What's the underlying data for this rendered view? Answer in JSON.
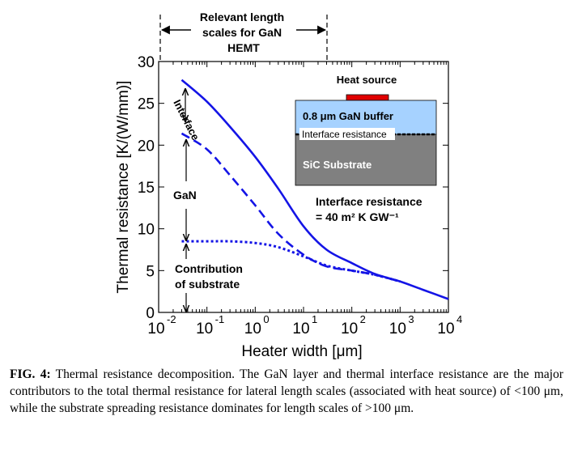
{
  "chart_data": {
    "type": "line",
    "xscale": "log",
    "xlim": [
      0.01,
      10000
    ],
    "ylim": [
      0,
      30
    ],
    "xlabel": "Heater width [μm]",
    "ylabel": "Thermal resistance [K/(W/mm)]",
    "x_ticks": [
      {
        "base": "10",
        "exp": "-2"
      },
      {
        "base": "10",
        "exp": "-1"
      },
      {
        "base": "10",
        "exp": "0"
      },
      {
        "base": "10",
        "exp": "1"
      },
      {
        "base": "10",
        "exp": "2"
      },
      {
        "base": "10",
        "exp": "3"
      },
      {
        "base": "10",
        "exp": "4"
      }
    ],
    "y_ticks": [
      "0",
      "5",
      "10",
      "15",
      "20",
      "25",
      "30"
    ],
    "series": [
      {
        "style": "solid",
        "color": "#1414e6",
        "x": [
          0.03,
          0.1,
          0.3,
          1,
          3,
          10,
          30,
          100,
          300,
          1000,
          3000,
          10000
        ],
        "y": [
          27.8,
          25.2,
          22.2,
          18.6,
          14.8,
          10.3,
          7.5,
          5.9,
          4.6,
          3.7,
          2.7,
          1.6
        ]
      },
      {
        "style": "dashed",
        "color": "#1414e6",
        "x": [
          0.03,
          0.1,
          0.3,
          1,
          3,
          10,
          30,
          100,
          300,
          1000
        ],
        "y": [
          21.4,
          19.5,
          16.4,
          12.8,
          9.4,
          6.9,
          5.5,
          5.0,
          4.5,
          3.7
        ]
      },
      {
        "style": "dotted",
        "color": "#1414e6",
        "x": [
          0.03,
          0.1,
          0.3,
          1,
          3,
          10,
          30,
          100,
          300,
          1000
        ],
        "y": [
          8.5,
          8.5,
          8.5,
          8.3,
          7.8,
          6.7,
          5.6,
          5.0,
          4.5,
          3.7
        ]
      }
    ],
    "annotations": {
      "relevant_lines": [
        "Relevant length",
        "scales for GaN",
        "HEMT"
      ],
      "interface": "Interface",
      "gan": "GaN",
      "contribution_lines": [
        "Contribution",
        "of substrate"
      ],
      "interface_value_lines": [
        "Interface resistance",
        "= 40 m² K GW⁻¹"
      ]
    },
    "inset": {
      "heat_source": "Heat source",
      "buffer": "0.8 μm GaN buffer",
      "interface": "Interface resistance",
      "substrate": "SiC Substrate",
      "colors": {
        "buffer": "#a6d2ff",
        "substrate": "#808080",
        "heater": "#e00000"
      }
    }
  },
  "caption": {
    "label": "FIG. 4:",
    "text": " Thermal resistance decomposition. The GaN layer and thermal interface resistance are the major contributors to the total thermal resistance for lateral length scales (associated with heat source) of <100 μm, while the substrate spreading resistance dominates for length scales of >100 μm."
  }
}
